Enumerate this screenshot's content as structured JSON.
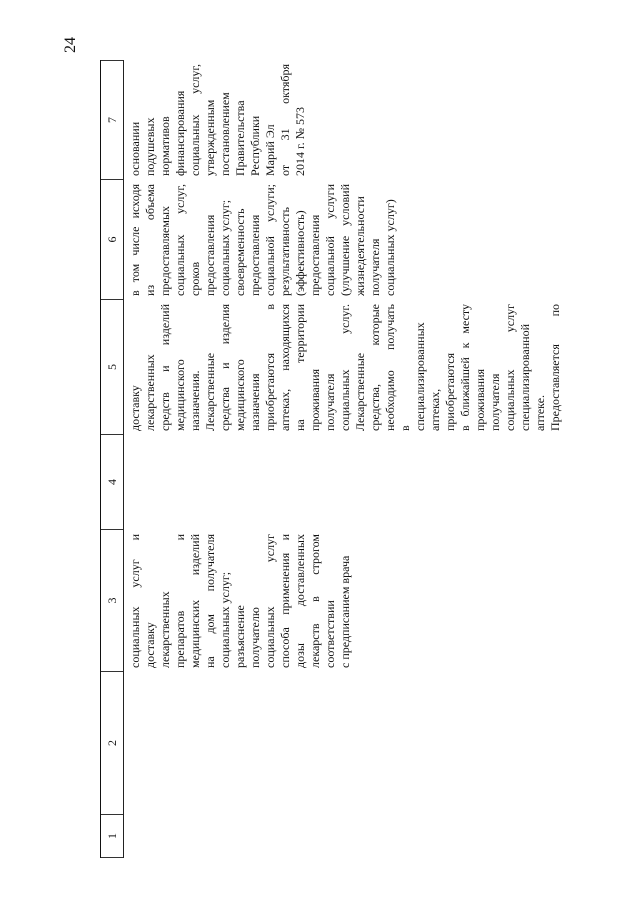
{
  "page_number": "24",
  "header": [
    "1",
    "2",
    "3",
    "4",
    "5",
    "6",
    "7"
  ],
  "columns": {
    "c3": [
      "социальных услуг и",
      "доставку",
      "лекарственных",
      "препаратов и",
      "медицинских изделий",
      "на дом получателя",
      "социальных услуг;",
      "разъяснение",
      "получателю",
      "социальных услуг",
      "способа применения и",
      "дозы доставленных",
      "лекарств в строгом",
      "соответствии",
      "с предписанием врача"
    ],
    "c5": [
      "доставку",
      "лекарственных",
      "средств и изделий",
      "медицинского",
      "назначения.",
      "Лекарственные",
      "средства и изделия",
      "медицинского",
      "назначения",
      "приобретаются в",
      "аптеках, находящихся",
      "на территории",
      "проживания",
      "получателя",
      "социальных услуг.",
      "Лекарственные",
      "средства, которые",
      "необходимо получать",
      "в",
      "специализированных",
      "аптеках,",
      "приобретаются",
      "в ближайшей к месту",
      "проживания",
      "получателя",
      "социальных услуг",
      "специализированной",
      "аптеке.",
      "Предоставляется по"
    ],
    "c6": [
      "в том числе исходя",
      "из объема",
      "предоставляемых",
      "социальных услуг,",
      "сроков",
      "предоставления",
      "социальных услуг;",
      "своевременность",
      "предоставления",
      "социальной услуги;",
      "результативность",
      "(эффективность)",
      "предоставления",
      "социальной услуги",
      "(улучшение условий",
      "жизнедеятельности",
      "получателя",
      "социальных услуг)"
    ],
    "c7": [
      "основании",
      "подушевых",
      "нормативов",
      "финансирования",
      "социальных услуг,",
      "утвержденным",
      "постановлением",
      "Правительства",
      "Республики",
      "Марий Эл",
      "от 31 октября",
      "2014 г. № 573"
    ]
  }
}
